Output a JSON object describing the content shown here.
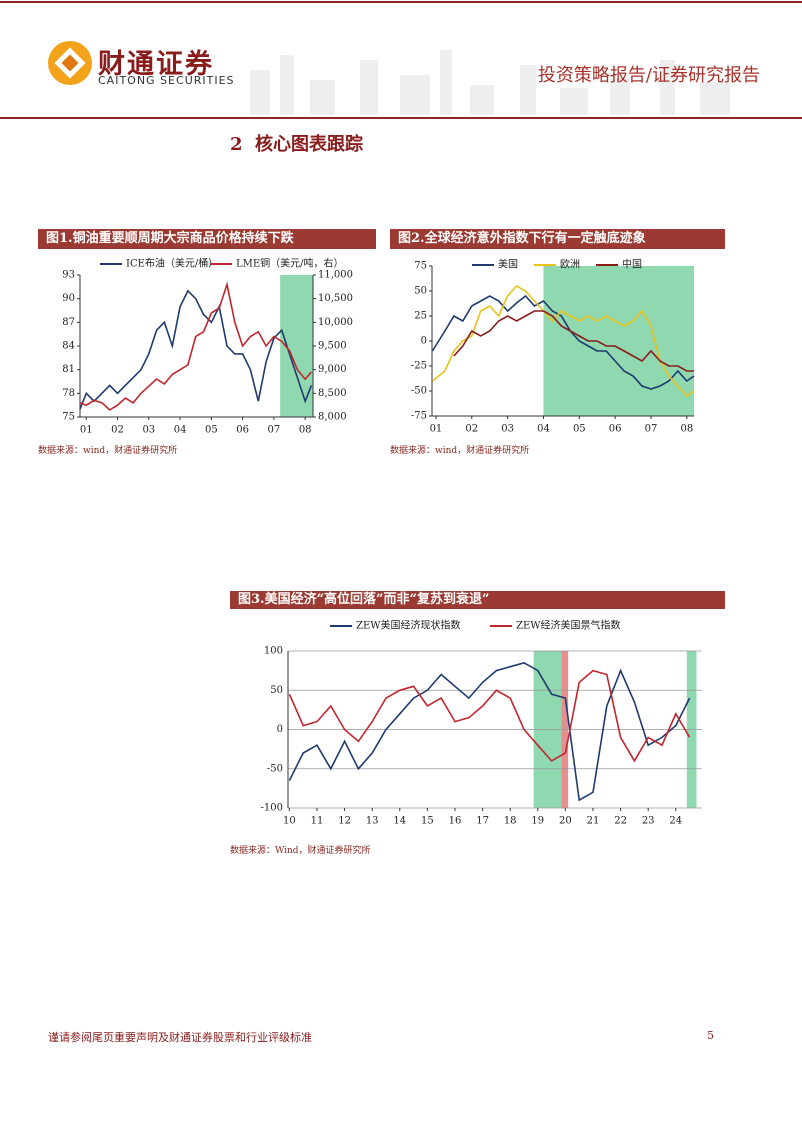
{
  "header": {
    "company": "财通证券",
    "company_en": "CAITONG SECURITIES",
    "report_type": "投资策略报告/证券研究报告"
  },
  "section_title": "2  核心图表跟踪",
  "chart_data": [
    {
      "type": "line",
      "title": "图1.铜油重要顺周期大宗商品价格持续下跌",
      "source": "数据来源：wind，财通证券研究所",
      "x": [
        0.8,
        1,
        1.25,
        1.5,
        1.75,
        2,
        2.25,
        2.5,
        2.75,
        3,
        3.25,
        3.5,
        3.75,
        4,
        4.25,
        4.5,
        4.75,
        5,
        5.25,
        5.5,
        5.75,
        6,
        6.25,
        6.5,
        6.75,
        7,
        7.25,
        7.5,
        7.75,
        8,
        8.2
      ],
      "xlim": [
        0.8,
        8.25
      ],
      "xticks": [
        {
          "value": 1,
          "label": "01"
        },
        {
          "value": 2,
          "label": "02"
        },
        {
          "value": 3,
          "label": "03"
        },
        {
          "value": 4,
          "label": "04"
        },
        {
          "value": 5,
          "label": "05"
        },
        {
          "value": 6,
          "label": "06"
        },
        {
          "value": 7,
          "label": "07"
        },
        {
          "value": 8,
          "label": "08"
        }
      ],
      "ylim": [
        75,
        93
      ],
      "yticks": [
        75,
        78,
        81,
        84,
        87,
        90,
        93
      ],
      "y2lim": [
        8000,
        11000
      ],
      "y2ticks": [
        {
          "value": 8000,
          "label": "8,000"
        },
        {
          "value": 8500,
          "label": "8,500"
        },
        {
          "value": 9000,
          "label": "9,000"
        },
        {
          "value": 9500,
          "label": "9,500"
        },
        {
          "value": 10000,
          "label": "10,000"
        },
        {
          "value": 10500,
          "label": "10,500"
        },
        {
          "value": 11000,
          "label": "11,000"
        }
      ],
      "grid": false,
      "shaded": [
        {
          "x0": 7.2,
          "x1": 8.25,
          "color": "#8fd8b0"
        }
      ],
      "series": [
        {
          "name": "ICE布油（美元/桶）",
          "color": "#1f3a6e",
          "values": [
            76,
            78,
            77,
            78,
            79,
            78,
            79,
            80,
            81,
            83,
            86,
            87,
            84,
            89,
            91,
            90,
            88,
            87,
            89,
            84,
            83,
            83,
            81,
            77,
            82,
            85,
            86,
            83,
            80,
            77,
            79
          ]
        },
        {
          "name": "LME铜（美元/吨，右）",
          "color": "#c0262d",
          "axis": "y2",
          "values": [
            8300,
            8250,
            8350,
            8300,
            8150,
            8250,
            8400,
            8300,
            8500,
            8650,
            8800,
            8700,
            8900,
            9000,
            9100,
            9700,
            9800,
            10200,
            10300,
            10800,
            10000,
            9500,
            9700,
            9800,
            9500,
            9700,
            9600,
            9400,
            9000,
            8800,
            8950
          ]
        }
      ]
    },
    {
      "type": "line",
      "title": "图2.全球经济意外指数下行有一定触底迹象",
      "source": "数据来源：wind，财通证券研究所",
      "x": [
        0.9,
        1.25,
        1.5,
        1.75,
        2,
        2.25,
        2.5,
        2.75,
        3,
        3.25,
        3.5,
        3.75,
        4,
        4.25,
        4.5,
        4.75,
        5,
        5.25,
        5.5,
        5.75,
        6,
        6.25,
        6.5,
        6.75,
        7,
        7.25,
        7.5,
        7.75,
        8,
        8.2
      ],
      "xlim": [
        0.89,
        8.2
      ],
      "xticks": [
        {
          "value": 1,
          "label": "01"
        },
        {
          "value": 2,
          "label": "02"
        },
        {
          "value": 3,
          "label": "03"
        },
        {
          "value": 4,
          "label": "04"
        },
        {
          "value": 5,
          "label": "05"
        },
        {
          "value": 6,
          "label": "06"
        },
        {
          "value": 7,
          "label": "07"
        },
        {
          "value": 8,
          "label": "08"
        }
      ],
      "ylim": [
        -75,
        75
      ],
      "yticks": [
        -75,
        -50,
        -25,
        0,
        25,
        50,
        75
      ],
      "grid": false,
      "shaded": [
        {
          "x0": 4,
          "x1": 8.2,
          "color": "#8fd8b0"
        }
      ],
      "series": [
        {
          "name": "美国",
          "color": "#1f3a6e",
          "values": [
            -10,
            10,
            25,
            20,
            35,
            40,
            45,
            40,
            30,
            38,
            45,
            35,
            40,
            30,
            25,
            10,
            0,
            -5,
            -10,
            -10,
            -20,
            -30,
            -35,
            -45,
            -48,
            -45,
            -40,
            -30,
            -40,
            -35
          ]
        },
        {
          "name": "欧洲",
          "color": "#e8c21a",
          "values": [
            -40,
            -30,
            -10,
            0,
            5,
            30,
            35,
            25,
            45,
            55,
            50,
            40,
            30,
            20,
            30,
            25,
            20,
            25,
            20,
            25,
            20,
            15,
            20,
            30,
            15,
            -20,
            -35,
            -45,
            -55,
            -50
          ]
        },
        {
          "name": "中国",
          "color": "#8a1c1c",
          "values": [
            null,
            null,
            -15,
            -5,
            10,
            5,
            10,
            20,
            25,
            20,
            25,
            30,
            30,
            25,
            15,
            10,
            5,
            0,
            0,
            -5,
            -5,
            -10,
            -15,
            -20,
            -10,
            -20,
            -25,
            -25,
            -30,
            -30
          ]
        }
      ]
    },
    {
      "type": "line",
      "title": "图3.美国经济“高位回落”而非“复苏到衰退”",
      "source": "数据来源：Wind，财通证券研究所",
      "x": [
        10,
        10.5,
        11,
        11.5,
        12,
        12.5,
        13,
        13.5,
        14,
        14.5,
        15,
        15.5,
        16,
        16.5,
        17,
        17.5,
        18,
        18.5,
        19,
        19.5,
        20,
        20.5,
        21,
        21.5,
        22,
        22.5,
        23,
        23.5,
        24,
        24.5
      ],
      "xlim": [
        9.95,
        24.95
      ],
      "xticks": [
        10,
        11,
        12,
        13,
        14,
        15,
        16,
        17,
        18,
        19,
        20,
        21,
        22,
        23,
        24
      ],
      "ylim": [
        -100,
        100
      ],
      "yticks": [
        -100,
        -50,
        0,
        50,
        100
      ],
      "grid": true,
      "shaded": [
        {
          "x0": 18.85,
          "x1": 19.85,
          "color": "#8fd8b0"
        },
        {
          "x0": 19.85,
          "x1": 20.1,
          "color": "#e58f8f"
        },
        {
          "x0": 24.4,
          "x1": 24.75,
          "color": "#8fd8b0"
        }
      ],
      "series": [
        {
          "name": "ZEW美国经济现状指数",
          "color": "#1f3a6e",
          "values": [
            -65,
            -30,
            -20,
            -50,
            -15,
            -50,
            -30,
            0,
            20,
            40,
            50,
            70,
            55,
            40,
            60,
            75,
            80,
            85,
            75,
            45,
            40,
            -90,
            -80,
            30,
            75,
            35,
            -20,
            -10,
            5,
            40
          ]
        },
        {
          "name": "ZEW经济美国景气指数",
          "color": "#c0262d",
          "values": [
            45,
            5,
            10,
            30,
            0,
            -15,
            10,
            40,
            50,
            55,
            30,
            40,
            10,
            15,
            30,
            50,
            40,
            0,
            -20,
            -40,
            -30,
            60,
            75,
            70,
            -10,
            -40,
            -10,
            -20,
            20,
            -10
          ]
        }
      ]
    }
  ],
  "footer": {
    "disclaimer": "谨请参阅尾页重要声明及财通证券股票和行业评级标准",
    "page": "5"
  }
}
